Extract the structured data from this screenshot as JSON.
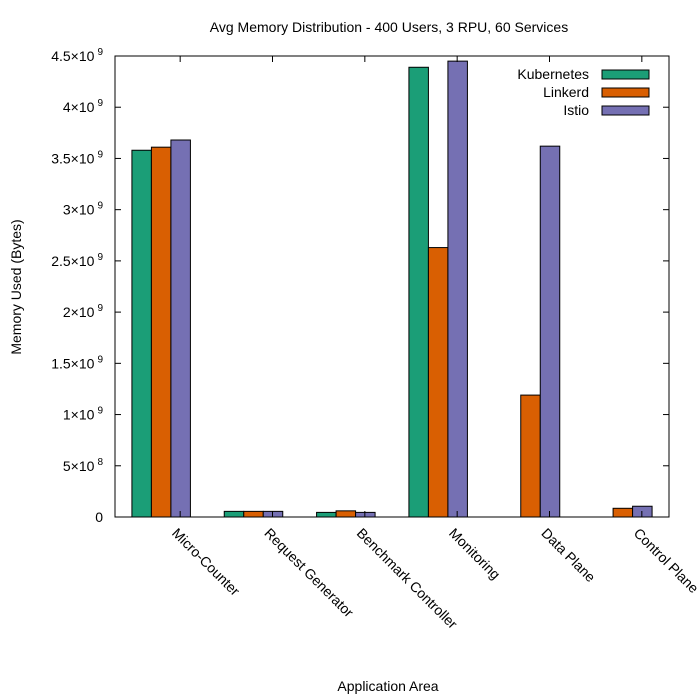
{
  "chart_data": {
    "type": "bar",
    "title": "Avg Memory Distribution - 400 Users, 3 RPU, 60 Services",
    "xlabel": "Application Area",
    "ylabel": "Memory Used (Bytes)",
    "ylim": [
      0,
      4500000000
    ],
    "grid": false,
    "legend_position": "top-right",
    "y_ticks": [
      {
        "value": 0,
        "label": "0",
        "exp": ""
      },
      {
        "value": 500000000,
        "label": "5×10",
        "exp": "8"
      },
      {
        "value": 1000000000,
        "label": "1×10",
        "exp": "9"
      },
      {
        "value": 1500000000,
        "label": "1.5×10",
        "exp": "9"
      },
      {
        "value": 2000000000,
        "label": "2×10",
        "exp": "9"
      },
      {
        "value": 2500000000,
        "label": "2.5×10",
        "exp": "9"
      },
      {
        "value": 3000000000,
        "label": "3×10",
        "exp": "9"
      },
      {
        "value": 3500000000,
        "label": "3.5×10",
        "exp": "9"
      },
      {
        "value": 4000000000,
        "label": "4×10",
        "exp": "9"
      },
      {
        "value": 4500000000,
        "label": "4.5×10",
        "exp": "9"
      }
    ],
    "categories": [
      "Micro-Counter",
      "Request Generator",
      "Benchmark Controller",
      "Monitoring",
      "Data Plane",
      "Control Plane"
    ],
    "series": [
      {
        "name": "Kubernetes",
        "color": "#1b9e77",
        "values": [
          3580000000,
          55000000,
          45000000,
          4390000000,
          0,
          0
        ]
      },
      {
        "name": "Linkerd",
        "color": "#d95f02",
        "values": [
          3610000000,
          55000000,
          60000000,
          2630000000,
          1190000000,
          85000000
        ]
      },
      {
        "name": "Istio",
        "color": "#7570b3",
        "values": [
          3680000000,
          55000000,
          45000000,
          4450000000,
          3620000000,
          105000000
        ]
      }
    ]
  }
}
